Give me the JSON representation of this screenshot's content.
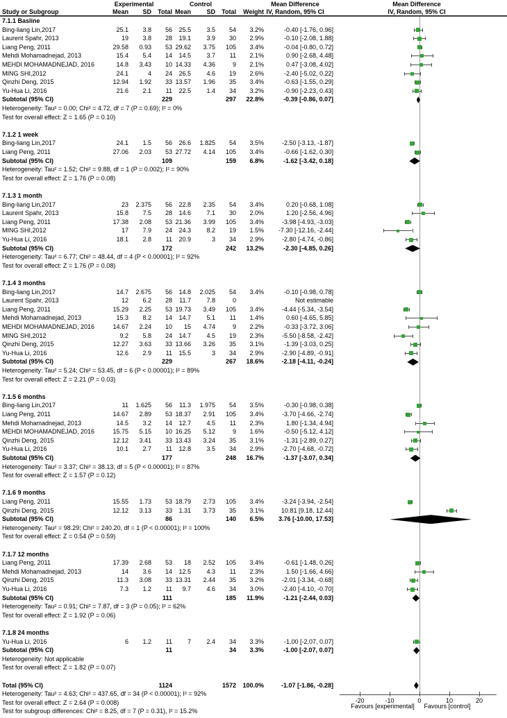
{
  "header": {
    "group_experimental": "Experimental",
    "group_control": "Control",
    "md_text_title": "Mean Difference",
    "md_plot_title": "Mean Difference",
    "study_col": "Study or Subgroup",
    "cols": [
      "Mean",
      "SD",
      "Total",
      "Mean",
      "SD",
      "Total",
      "Weight"
    ],
    "ci_col": "IV, Random, 95% CI",
    "plot_ci_col": "IV, Random, 95% CI"
  },
  "chart_data": {
    "type": "forest",
    "effect_measure": "Mean Difference",
    "model": "IV, Random, 95% CI",
    "axis": {
      "ticks": [
        -20,
        -10,
        0,
        10,
        20
      ],
      "range": [
        -26.5,
        25.5
      ],
      "left_label": "Favours [experimental]",
      "right_label": "Favours [control]"
    },
    "colors": {
      "marker": "#36a339",
      "line": "#4a4a4a",
      "diamond": "#000000",
      "zero_line": "#9a9a9a"
    },
    "subtotal_label": "Subtotal (95% CI)",
    "total_label": "Total (95% CI)",
    "not_estimable_label": "Not estimable",
    "study_columns": [
      "study",
      "exp_mean",
      "exp_sd",
      "exp_total",
      "ctl_mean",
      "ctl_sd",
      "ctl_total",
      "weight",
      "md",
      "ci_low",
      "ci_high"
    ],
    "sections": [
      {
        "label": "7.1.1 Basline",
        "studies": [
          [
            "Bing-liang Lin,2017",
            "25.1",
            "3.8",
            "56",
            "25.5",
            "3.5",
            "54",
            "3.2%",
            -0.4,
            -1.76,
            0.96
          ],
          [
            "Laurent Spahr, 2013",
            "19",
            "3.8",
            "28",
            "19.1",
            "3.9",
            "30",
            "2.9%",
            -0.1,
            -2.08,
            1.88
          ],
          [
            "Liang Peng, 2011",
            "29.58",
            "0.93",
            "53",
            "29.62",
            "3.75",
            "105",
            "3.4%",
            -0.04,
            -0.8,
            0.72
          ],
          [
            "Mehdi Mohamadnejad, 2013",
            "15.4",
            "5.4",
            "14",
            "14.5",
            "3.7",
            "11",
            "2.1%",
            0.9,
            -2.68,
            4.48
          ],
          [
            "MEHDI MOHAMADNEJAD, 2016",
            "14.8",
            "3.43",
            "10",
            "14.33",
            "4.36",
            "9",
            "2.1%",
            0.47,
            -3.08,
            4.02
          ],
          [
            "MING SHI,2012",
            "24.1",
            "4",
            "24",
            "26.5",
            "4.6",
            "19",
            "2.6%",
            -2.4,
            -5.02,
            0.22
          ],
          [
            "Qinzhi Deng, 2015",
            "12.94",
            "1.92",
            "33",
            "13.57",
            "1.96",
            "35",
            "3.4%",
            -0.63,
            -1.55,
            0.29
          ],
          [
            "Yu-Hua Li, 2016",
            "21.6",
            "2.1",
            "11",
            "22.5",
            "1.4",
            "34",
            "3.2%",
            -0.9,
            -2.23,
            0.43
          ]
        ],
        "subtotal": {
          "n1": "229",
          "n2": "297",
          "weight": "22.8%",
          "md": -0.39,
          "lo": -0.86,
          "hi": 0.07
        },
        "heterogeneity": "Heterogeneity: Tau² = 0.00; Chi² = 4.72, df = 7 (P = 0.69); I² = 0%",
        "overall": "Test for overall effect: Z = 1.65 (P = 0.10)"
      },
      {
        "label": "7.1.2 1 week",
        "studies": [
          [
            "Bing-liang Lin,2017",
            "24.1",
            "1.5",
            "56",
            "26.6",
            "1.825",
            "54",
            "3.5%",
            -2.5,
            -3.13,
            -1.87
          ],
          [
            "Liang Peng, 2011",
            "27.06",
            "2.03",
            "53",
            "27.72",
            "4.14",
            "105",
            "3.4%",
            -0.66,
            -1.62,
            0.3
          ]
        ],
        "subtotal": {
          "n1": "109",
          "n2": "159",
          "weight": "6.8%",
          "md": -1.62,
          "lo": -3.42,
          "hi": 0.18
        },
        "heterogeneity": "Heterogeneity: Tau² = 1.52; Chi² = 9.88, df = 1 (P = 0.002); I² = 90%",
        "overall": "Test for overall effect: Z = 1.76 (P = 0.08)"
      },
      {
        "label": "7.1.3 1 month",
        "studies": [
          [
            "Bing-liang Lin,2017",
            "23",
            "2.375",
            "56",
            "22.8",
            "2.35",
            "54",
            "3.4%",
            0.2,
            -0.68,
            1.08
          ],
          [
            "Laurent Spahr, 2013",
            "15.8",
            "7.5",
            "28",
            "14.6",
            "7.1",
            "30",
            "2.0%",
            1.2,
            -2.56,
            4.96
          ],
          [
            "Liang Peng, 2011",
            "17.38",
            "2.08",
            "53",
            "21.36",
            "3.99",
            "105",
            "3.4%",
            -3.98,
            -4.93,
            -3.03
          ],
          [
            "MING SHI,2012",
            "17",
            "7.9",
            "24",
            "24.3",
            "8.2",
            "19",
            "1.5%",
            -7.3,
            -12.16,
            -2.44
          ],
          [
            "Yu-Hua Li, 2016",
            "18.1",
            "2.8",
            "11",
            "20.9",
            "3",
            "34",
            "2.9%",
            -2.8,
            -4.74,
            -0.86
          ]
        ],
        "subtotal": {
          "n1": "172",
          "n2": "242",
          "weight": "13.2%",
          "md": -2.3,
          "lo": -4.85,
          "hi": 0.26
        },
        "heterogeneity": "Heterogeneity: Tau² = 6.77; Chi² = 48.44, df = 4 (P < 0.00001); I² = 92%",
        "overall": "Test for overall effect: Z = 1.76 (P = 0.08)"
      },
      {
        "label": "7.1.4 3 months",
        "studies": [
          [
            "Bing-liang Lin,2017",
            "14.7",
            "2.675",
            "56",
            "14.8",
            "2.025",
            "54",
            "3.4%",
            -0.1,
            -0.98,
            0.78
          ],
          [
            "Laurent Spahr, 2013",
            "12",
            "6.2",
            "28",
            "11.7",
            "7.8",
            "0",
            "",
            null,
            null,
            null
          ],
          [
            "Liang Peng, 2011",
            "15.29",
            "2.25",
            "53",
            "19.73",
            "3.49",
            "105",
            "3.4%",
            -4.44,
            -5.34,
            -3.54
          ],
          [
            "Mehdi Mohamadnejad, 2013",
            "15.3",
            "8.2",
            "14",
            "14.7",
            "5.1",
            "11",
            "1.4%",
            0.6,
            -4.65,
            5.85
          ],
          [
            "MEHDI MOHAMADNEJAD, 2016",
            "14.67",
            "2.24",
            "10",
            "15",
            "4.74",
            "9",
            "2.2%",
            -0.33,
            -3.72,
            3.06
          ],
          [
            "MING SHI,2012",
            "9.2",
            "5.8",
            "24",
            "14.7",
            "4.5",
            "19",
            "2.3%",
            -5.5,
            -8.58,
            -2.42
          ],
          [
            "Qinzhi Deng, 2015",
            "12.27",
            "3.63",
            "33",
            "13.66",
            "3.26",
            "35",
            "3.1%",
            -1.39,
            -3.03,
            0.25
          ],
          [
            "Yu-Hua Li, 2016",
            "12.6",
            "2.9",
            "11",
            "15.5",
            "3",
            "34",
            "2.9%",
            -2.9,
            -4.89,
            -0.91
          ]
        ],
        "subtotal": {
          "n1": "229",
          "n2": "267",
          "weight": "18.6%",
          "md": -2.18,
          "lo": -4.11,
          "hi": -0.24
        },
        "heterogeneity": "Heterogeneity: Tau² = 5.24; Chi² = 53.45, df = 6 (P < 0.00001); I² = 89%",
        "overall": "Test for overall effect: Z = 2.21 (P = 0.03)"
      },
      {
        "label": "7.1.5 6 months",
        "studies": [
          [
            "Bing-liang Lin,2017",
            "11",
            "1.625",
            "56",
            "11.3",
            "1.975",
            "54",
            "3.5%",
            -0.3,
            -0.98,
            0.38
          ],
          [
            "Liang Peng, 2011",
            "14.67",
            "2.89",
            "53",
            "18.37",
            "2.91",
            "105",
            "3.4%",
            -3.7,
            -4.66,
            -2.74
          ],
          [
            "Mehdi Mohamadnejad, 2013",
            "14.5",
            "3.2",
            "14",
            "12.7",
            "4.5",
            "11",
            "2.3%",
            1.8,
            -1.34,
            4.94
          ],
          [
            "MEHDI MOHAMADNEJAD, 2016",
            "15.75",
            "5.15",
            "10",
            "16.25",
            "5.12",
            "9",
            "1.6%",
            -0.5,
            -5.12,
            4.12
          ],
          [
            "Qinzhi Deng, 2015",
            "12.12",
            "3.41",
            "33",
            "13.43",
            "3.24",
            "35",
            "3.1%",
            -1.31,
            -2.89,
            0.27
          ],
          [
            "Yu-Hua Li, 2016",
            "10.1",
            "2.7",
            "11",
            "12.8",
            "3.5",
            "34",
            "2.9%",
            -2.7,
            -4.68,
            -0.72
          ]
        ],
        "subtotal": {
          "n1": "177",
          "n2": "248",
          "weight": "16.7%",
          "md": -1.37,
          "lo": -3.07,
          "hi": 0.34
        },
        "heterogeneity": "Heterogeneity: Tau² = 3.37; Chi² = 38.13, df = 5 (P < 0.00001); I² = 87%",
        "overall": "Test for overall effect: Z = 1.57 (P = 0.12)"
      },
      {
        "label": "7.1.6 9 months",
        "studies": [
          [
            "Liang Peng, 2011",
            "15.55",
            "1.73",
            "53",
            "18.79",
            "2.73",
            "105",
            "3.4%",
            -3.24,
            -3.94,
            -2.54
          ],
          [
            "Qinzhi Deng, 2015",
            "12.12",
            "3.13",
            "33",
            "1.31",
            "3.73",
            "35",
            "3.1%",
            10.81,
            9.18,
            12.44
          ]
        ],
        "subtotal": {
          "n1": "86",
          "n2": "140",
          "weight": "6.5%",
          "md": 3.76,
          "lo": -10.0,
          "hi": 17.53
        },
        "heterogeneity": "Heterogeneity: Tau² = 98.29; Chi² = 240.20, df = 1 (P < 0.00001); I² = 100%",
        "overall": "Test for overall effect: Z = 0.54 (P = 0.59)"
      },
      {
        "label": "7.1.7 12 months",
        "studies": [
          [
            "Liang Peng, 2011",
            "17.39",
            "2.68",
            "53",
            "18",
            "2.52",
            "105",
            "3.4%",
            -0.61,
            -1.48,
            0.26
          ],
          [
            "Mehdi Mohamadnejad, 2013",
            "14",
            "3.6",
            "14",
            "12.5",
            "4.3",
            "11",
            "2.3%",
            1.5,
            -1.66,
            4.66
          ],
          [
            "Qinzhi Deng, 2015",
            "11.3",
            "3.08",
            "33",
            "13.31",
            "2.44",
            "35",
            "3.2%",
            -2.01,
            -3.34,
            -0.68
          ],
          [
            "Yu-Hua Li, 2016",
            "7.3",
            "1.2",
            "11",
            "9.7",
            "4.6",
            "34",
            "3.0%",
            -2.4,
            -4.1,
            -0.7
          ]
        ],
        "subtotal": {
          "n1": "111",
          "n2": "185",
          "weight": "11.9%",
          "md": -1.21,
          "lo": -2.44,
          "hi": 0.03
        },
        "heterogeneity": "Heterogeneity: Tau² = 0.91; Chi² = 7.87, df = 3 (P = 0.05); I² = 62%",
        "overall": "Test for overall effect: Z = 1.92 (P = 0.06)"
      },
      {
        "label": "7.1.8 24 months",
        "studies": [
          [
            "Yu-Hua Li, 2016",
            "6",
            "1.2",
            "11",
            "7",
            "2.4",
            "34",
            "3.3%",
            -1.0,
            -2.07,
            0.07
          ]
        ],
        "subtotal": {
          "n1": "11",
          "n2": "34",
          "weight": "3.3%",
          "md": -1.0,
          "lo": -2.07,
          "hi": 0.07
        },
        "heterogeneity": "Heterogeneity: Not applicable",
        "overall": "Test for overall effect: Z = 1.82 (P = 0.07)"
      }
    ],
    "total": {
      "n1": "1124",
      "n2": "1572",
      "weight": "100.0%",
      "md": -1.07,
      "lo": -1.86,
      "hi": -0.28,
      "heterogeneity": "Heterogeneity: Tau² = 4.63; Chi² = 437.65, df = 34 (P < 0.00001); I² = 92%",
      "overall": "Test for overall effect: Z = 2.64 (P = 0.008)",
      "subgroup": "Test for subgroup differences: Chi² = 8.25, df = 7 (P = 0.31), I² = 15.2%"
    }
  }
}
